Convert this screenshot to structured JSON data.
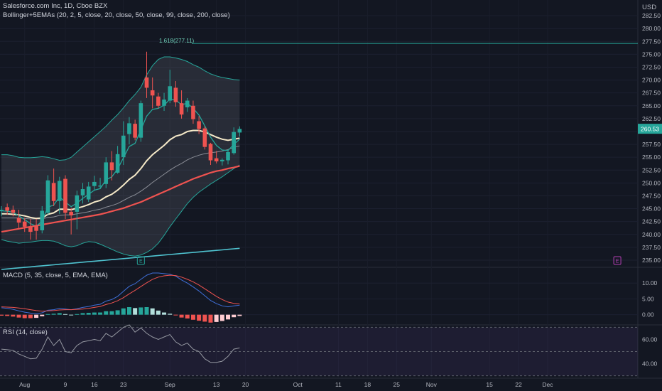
{
  "header": {
    "title": "Salesforce.com Inc, 1D, Cboe BZX",
    "indicator": "Bollinger+5EMAs (20, 2, 5, close, 20, close, 50, close, 99, close, 200, close)",
    "currency": "USD"
  },
  "colors": {
    "background": "#131722",
    "up": "#26a69a",
    "down": "#ef5350",
    "bollinger": "#26a69a",
    "ema5": "#26a69a",
    "ema20": "#f5e9c8",
    "ema50": "#8a8d96",
    "ema99": "#ef5350",
    "ema200": "#4fc3d0",
    "macd": "#3f6fd8",
    "signal": "#ef5350",
    "rsi": "#9598a1"
  },
  "chart_data": [
    {
      "type": "candlestick",
      "symbol": "Salesforce.com Inc",
      "interval": "1D",
      "exchange": "Cboe BZX",
      "ylim": [
        233.75,
        285.0
      ],
      "y_ticks": [
        235.0,
        237.5,
        240.0,
        242.5,
        245.0,
        247.5,
        250.0,
        252.5,
        255.0,
        257.5,
        260.0,
        262.5,
        265.0,
        267.5,
        270.0,
        272.5,
        275.0,
        277.5,
        280.0,
        282.5
      ],
      "x_tick_labels": [
        "Aug",
        "9",
        "16",
        "23",
        "Sep",
        "13",
        "20",
        "Oct",
        "11",
        "18",
        "25",
        "Nov",
        "15",
        "22",
        "Dec"
      ],
      "ohlc": [
        {
          "o": 244.5,
          "h": 245.5,
          "l": 243.5,
          "c": 244.8
        },
        {
          "o": 245.3,
          "h": 246.0,
          "l": 243.8,
          "c": 244.6
        },
        {
          "o": 244.8,
          "h": 245.6,
          "l": 243.5,
          "c": 244.2
        },
        {
          "o": 243.2,
          "h": 244.8,
          "l": 241.0,
          "c": 242.3
        },
        {
          "o": 242.5,
          "h": 243.2,
          "l": 240.5,
          "c": 241.5
        },
        {
          "o": 241.5,
          "h": 243.0,
          "l": 239.0,
          "c": 240.5
        },
        {
          "o": 241.8,
          "h": 243.0,
          "l": 239.0,
          "c": 240.7
        },
        {
          "o": 240.8,
          "h": 245.5,
          "l": 240.2,
          "c": 244.6
        },
        {
          "o": 244.2,
          "h": 251.5,
          "l": 243.8,
          "c": 250.5
        },
        {
          "o": 250.0,
          "h": 252.8,
          "l": 245.5,
          "c": 246.5
        },
        {
          "o": 246.5,
          "h": 251.2,
          "l": 244.0,
          "c": 250.4
        },
        {
          "o": 250.8,
          "h": 251.5,
          "l": 243.0,
          "c": 244.2
        },
        {
          "o": 244.4,
          "h": 245.2,
          "l": 240.0,
          "c": 243.7
        },
        {
          "o": 244.4,
          "h": 248.5,
          "l": 241.0,
          "c": 247.6
        },
        {
          "o": 247.6,
          "h": 250.0,
          "l": 246.0,
          "c": 248.8
        },
        {
          "o": 246.8,
          "h": 250.2,
          "l": 246.3,
          "c": 249.3
        },
        {
          "o": 249.4,
          "h": 251.4,
          "l": 248.6,
          "c": 250.2
        },
        {
          "o": 249.3,
          "h": 251.0,
          "l": 248.8,
          "c": 249.5
        },
        {
          "o": 249.8,
          "h": 255.0,
          "l": 249.0,
          "c": 254.0
        },
        {
          "o": 254.0,
          "h": 256.2,
          "l": 250.5,
          "c": 252.5
        },
        {
          "o": 252.0,
          "h": 257.2,
          "l": 251.8,
          "c": 255.6
        },
        {
          "o": 255.0,
          "h": 262.0,
          "l": 253.5,
          "c": 259.2
        },
        {
          "o": 259.5,
          "h": 262.8,
          "l": 257.5,
          "c": 261.6
        },
        {
          "o": 261.5,
          "h": 262.3,
          "l": 258.3,
          "c": 258.8
        },
        {
          "o": 258.8,
          "h": 266.0,
          "l": 258.0,
          "c": 265.5
        },
        {
          "o": 270.5,
          "h": 275.5,
          "l": 266.5,
          "c": 268.5
        },
        {
          "o": 268.0,
          "h": 270.5,
          "l": 264.5,
          "c": 267.0
        },
        {
          "o": 266.8,
          "h": 267.5,
          "l": 264.5,
          "c": 265.0
        },
        {
          "o": 265.0,
          "h": 267.5,
          "l": 264.0,
          "c": 266.2
        },
        {
          "o": 266.0,
          "h": 272.0,
          "l": 265.5,
          "c": 268.8
        },
        {
          "o": 268.5,
          "h": 269.8,
          "l": 264.8,
          "c": 265.7
        },
        {
          "o": 265.5,
          "h": 268.0,
          "l": 262.5,
          "c": 263.3
        },
        {
          "o": 264.7,
          "h": 266.5,
          "l": 263.8,
          "c": 266.0
        },
        {
          "o": 265.0,
          "h": 266.0,
          "l": 261.5,
          "c": 262.4
        },
        {
          "o": 262.0,
          "h": 263.0,
          "l": 259.5,
          "c": 260.5
        },
        {
          "o": 260.6,
          "h": 261.0,
          "l": 256.5,
          "c": 257.0
        },
        {
          "o": 257.6,
          "h": 257.8,
          "l": 253.5,
          "c": 254.4
        },
        {
          "o": 254.8,
          "h": 256.2,
          "l": 253.8,
          "c": 254.2
        },
        {
          "o": 254.2,
          "h": 254.8,
          "l": 253.4,
          "c": 254.5
        },
        {
          "o": 254.4,
          "h": 256.5,
          "l": 253.6,
          "c": 256.0
        },
        {
          "o": 255.8,
          "h": 260.8,
          "l": 255.5,
          "c": 259.9
        },
        {
          "o": 259.8,
          "h": 261.0,
          "l": 259.0,
          "c": 260.5
        }
      ],
      "bollinger": {
        "upper": [
          255.5,
          255.5,
          255.3,
          255.0,
          254.9,
          254.9,
          255.0,
          255.1,
          255.0,
          254.7,
          254.4,
          254.5,
          255.0,
          256.0,
          257.0,
          258.0,
          259.0,
          260.0,
          261.0,
          262.2,
          263.3,
          264.6,
          266.0,
          267.2,
          268.6,
          271.0,
          272.8,
          274.0,
          274.5,
          274.5,
          274.3,
          274.0,
          273.6,
          273.0,
          272.5,
          271.8,
          271.2,
          270.8,
          270.5,
          270.3,
          270.1,
          270.0
        ],
        "lower": [
          239.0,
          238.7,
          238.5,
          238.3,
          238.4,
          238.5,
          238.7,
          238.8,
          238.8,
          238.7,
          238.3,
          237.8,
          237.6,
          237.8,
          238.3,
          238.6,
          238.5,
          238.1,
          237.6,
          237.1,
          236.6,
          236.2,
          235.9,
          235.8,
          236.0,
          236.5,
          237.2,
          238.3,
          239.8,
          241.5,
          243.0,
          244.5,
          246.0,
          247.2,
          248.2,
          249.0,
          249.8,
          250.5,
          251.2,
          252.0,
          252.8,
          253.5
        ]
      },
      "ema5": [
        244.6,
        244.5,
        244.3,
        243.6,
        242.9,
        242.1,
        241.6,
        242.6,
        245.3,
        245.7,
        247.3,
        246.3,
        245.4,
        246.1,
        247.0,
        247.8,
        248.6,
        248.9,
        250.6,
        251.2,
        252.7,
        254.9,
        257.1,
        257.7,
        260.3,
        263.0,
        264.3,
        264.5,
        265.1,
        266.3,
        266.1,
        265.2,
        265.5,
        264.5,
        263.2,
        261.1,
        258.9,
        257.3,
        256.4,
        256.3,
        257.5,
        258.5
      ],
      "ema20": [
        244.0,
        244.0,
        243.9,
        243.8,
        243.6,
        243.3,
        243.1,
        243.2,
        243.9,
        244.2,
        244.9,
        244.9,
        244.8,
        245.1,
        245.4,
        245.8,
        246.3,
        246.6,
        247.3,
        247.8,
        248.6,
        249.6,
        250.7,
        251.5,
        252.8,
        254.3,
        255.5,
        256.4,
        257.3,
        258.4,
        259.1,
        259.4,
        260.0,
        260.2,
        260.2,
        259.9,
        259.4,
        258.9,
        258.5,
        258.3,
        258.5,
        258.7
      ],
      "ema50": [
        243.2,
        243.2,
        243.2,
        243.2,
        243.1,
        243.0,
        243.0,
        243.0,
        243.3,
        243.4,
        243.7,
        243.8,
        243.8,
        244.0,
        244.2,
        244.4,
        244.7,
        244.9,
        245.3,
        245.6,
        246.0,
        246.6,
        247.2,
        247.7,
        248.4,
        249.2,
        250.1,
        250.9,
        251.7,
        252.5,
        253.2,
        253.8,
        254.5,
        255.0,
        255.4,
        255.7,
        255.9,
        256.0,
        256.2,
        256.5,
        256.9,
        257.2
      ],
      "ema99": [
        240.5,
        240.7,
        240.9,
        241.1,
        241.3,
        241.5,
        241.7,
        241.9,
        242.1,
        242.3,
        242.5,
        242.7,
        242.9,
        243.1,
        243.3,
        243.5,
        243.7,
        243.9,
        244.2,
        244.5,
        244.8,
        245.1,
        245.5,
        245.9,
        246.3,
        246.8,
        247.3,
        247.8,
        248.3,
        248.8,
        249.3,
        249.8,
        250.3,
        250.8,
        251.2,
        251.6,
        252.0,
        252.3,
        252.5,
        252.8,
        253.0,
        253.3
      ],
      "ema200": [
        233.2,
        233.3,
        233.4,
        233.5,
        233.6,
        233.7,
        233.8,
        233.9,
        234.0,
        234.1,
        234.2,
        234.3,
        234.4,
        234.5,
        234.6,
        234.7,
        234.8,
        234.9,
        235.0,
        235.1,
        235.2,
        235.3,
        235.4,
        235.5,
        235.6,
        235.7,
        235.8,
        235.9,
        236.0,
        236.1,
        236.2,
        236.3,
        236.4,
        236.5,
        236.6,
        236.7,
        236.8,
        236.9,
        237.0,
        237.1,
        237.2,
        237.3
      ],
      "fib_level": {
        "label": "1.618(277.11)",
        "value": 277.11
      },
      "last_price": {
        "value": 260.53,
        "label": "260.53"
      },
      "event_markers": [
        {
          "label": "E",
          "index": 24,
          "color": "#26a69a"
        },
        {
          "label": "E",
          "index": 106,
          "color": "#b33fb3"
        }
      ]
    },
    {
      "type": "macd",
      "title": "MACD (5, 35, close, 5, EMA, EMA)",
      "ylim": [
        -3.0,
        15.0
      ],
      "y_ticks": [
        0.0,
        5.0,
        10.0
      ],
      "macd": [
        2.2,
        2.0,
        1.7,
        1.2,
        0.8,
        0.5,
        0.3,
        0.6,
        1.4,
        1.6,
        2.0,
        1.8,
        1.6,
        1.9,
        2.3,
        2.6,
        3.0,
        3.3,
        4.3,
        4.8,
        5.8,
        7.4,
        9.0,
        9.8,
        11.2,
        12.5,
        13.2,
        13.2,
        13.0,
        12.8,
        12.2,
        11.0,
        10.0,
        8.8,
        7.5,
        6.0,
        4.5,
        3.5,
        2.8,
        2.5,
        2.8,
        3.0
      ],
      "signal": [
        2.5,
        2.4,
        2.3,
        2.1,
        1.9,
        1.6,
        1.3,
        1.1,
        1.2,
        1.3,
        1.5,
        1.6,
        1.6,
        1.7,
        1.8,
        2.0,
        2.3,
        2.6,
        3.2,
        3.7,
        4.4,
        5.4,
        6.6,
        7.7,
        8.9,
        10.1,
        11.2,
        11.9,
        12.3,
        12.5,
        12.4,
        11.9,
        11.2,
        10.4,
        9.4,
        8.2,
        7.0,
        5.8,
        4.8,
        4.0,
        3.6,
        3.4
      ],
      "histogram": [
        -0.3,
        -0.4,
        -0.6,
        -0.9,
        -1.1,
        -1.1,
        -1.0,
        -0.5,
        0.2,
        0.3,
        0.5,
        0.2,
        0.0,
        0.2,
        0.5,
        0.6,
        0.7,
        0.7,
        1.1,
        1.1,
        1.4,
        2.0,
        2.4,
        2.1,
        2.3,
        2.4,
        2.0,
        1.3,
        0.7,
        0.3,
        -0.2,
        -0.9,
        -1.2,
        -1.6,
        -1.9,
        -2.2,
        -2.5,
        -2.3,
        -2.0,
        -1.5,
        -0.8,
        -0.4
      ]
    },
    {
      "type": "rsi",
      "title": "RSI (14, close)",
      "ylim": [
        28.0,
        72.0
      ],
      "y_ticks": [
        40.0,
        60.0
      ],
      "bands": [
        30.0,
        50.0,
        70.0
      ],
      "values": [
        52.0,
        51.5,
        51.0,
        48.0,
        46.0,
        44.0,
        44.5,
        52.0,
        62.0,
        55.0,
        60.0,
        50.0,
        49.0,
        55.0,
        58.0,
        59.0,
        60.0,
        59.0,
        65.0,
        62.0,
        66.0,
        70.0,
        72.0,
        66.0,
        69.5,
        65.0,
        62.0,
        60.0,
        62.0,
        64.0,
        58.0,
        55.0,
        57.0,
        52.0,
        50.0,
        44.0,
        41.0,
        41.0,
        42.0,
        46.0,
        52.0,
        53.0
      ]
    }
  ]
}
